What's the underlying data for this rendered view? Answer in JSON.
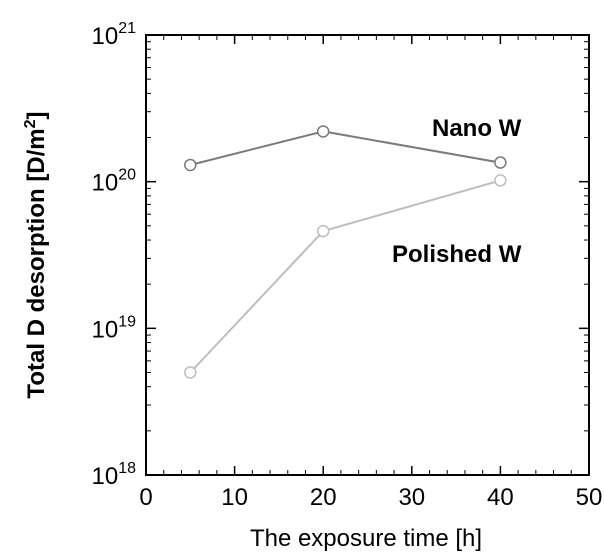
{
  "chart_data": {
    "type": "line",
    "xlabel": "The exposure time [h]",
    "ylabel": {
      "main": "Total D desorption [D/m",
      "sup": "2",
      "tail": "]"
    },
    "xlim": [
      0,
      50
    ],
    "ylim": [
      1e+18,
      1e+21
    ],
    "yscale": "log",
    "xticks": [
      0,
      10,
      20,
      30,
      40,
      50
    ],
    "yticks": [
      {
        "value": 1e+18,
        "base": "10",
        "exp": "18"
      },
      {
        "value": 1e+19,
        "base": "10",
        "exp": "19"
      },
      {
        "value": 1e+20,
        "base": "10",
        "exp": "20"
      },
      {
        "value": 1e+21,
        "base": "10",
        "exp": "21"
      }
    ],
    "series": [
      {
        "name": "Nano W",
        "color": "#7a7a7a",
        "x": [
          5,
          20,
          40
        ],
        "y": [
          1.3e+20,
          2.2e+20,
          1.35e+20
        ]
      },
      {
        "name": "Polished W",
        "color": "#bdbdbd",
        "x": [
          5,
          20,
          40
        ],
        "y": [
          5e+18,
          4.6e+19,
          1.02e+20
        ]
      }
    ],
    "annotations": [
      {
        "text": "Nano W"
      },
      {
        "text": "Polished W"
      }
    ],
    "grid": false,
    "legend": "none"
  }
}
